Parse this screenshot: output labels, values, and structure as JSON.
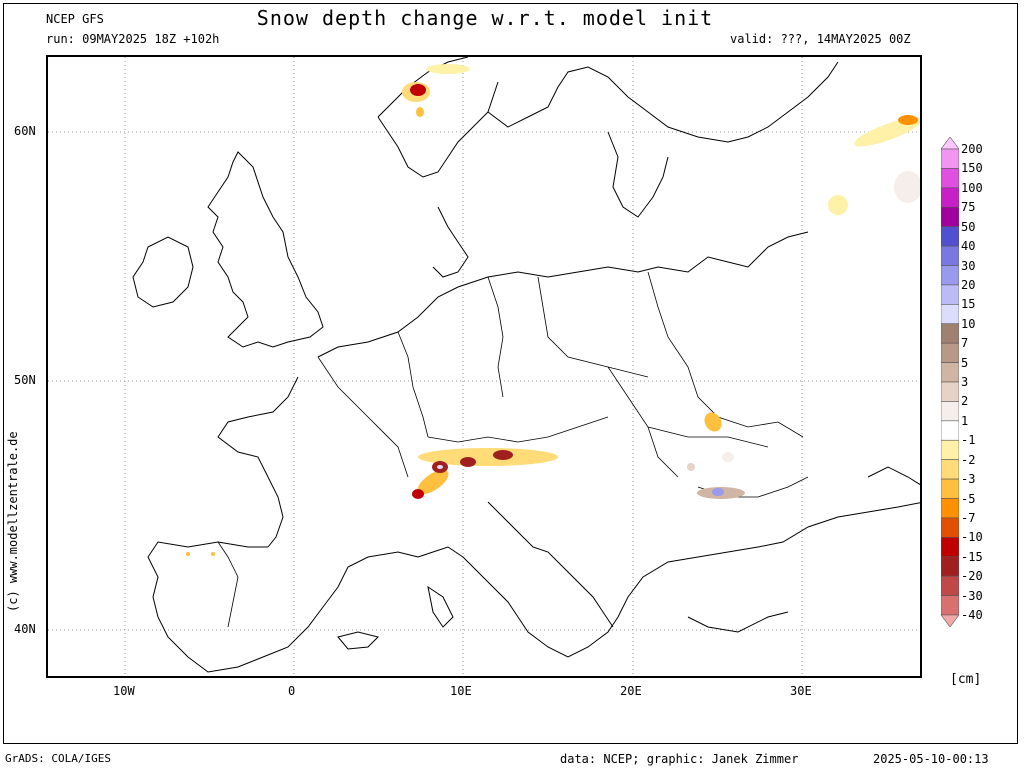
{
  "header": {
    "model": "NCEP GFS",
    "run": "run: 09MAY2025 18Z +102h",
    "title": "Snow depth change w.r.t. model init",
    "valid": "valid: ???, 14MAY2025 00Z"
  },
  "map": {
    "lat_labels": [
      "60N",
      "50N",
      "40N"
    ],
    "lon_labels": [
      "10W",
      "0",
      "10E",
      "20E",
      "30E"
    ],
    "grid": "dotted",
    "region": "Europe"
  },
  "legend": {
    "unit": "[cm]",
    "levels": [
      "200",
      "150",
      "100",
      "75",
      "50",
      "40",
      "30",
      "20",
      "15",
      "10",
      "7",
      "5",
      "3",
      "2",
      "1",
      "-1",
      "-2",
      "-3",
      "-5",
      "-7",
      "-10",
      "-15",
      "-20",
      "-30",
      "-40"
    ],
    "colors": [
      "#ffc6ff",
      "#f096f0",
      "#e050e0",
      "#c820c8",
      "#a000a0",
      "#5050d0",
      "#7878e0",
      "#9a9aec",
      "#bcbcf4",
      "#dcdcfc",
      "#a08070",
      "#b89888",
      "#d0b4a4",
      "#e6d2c6",
      "#f6eeea",
      "#ffffff",
      "#fff2a8",
      "#ffdc78",
      "#ffc040",
      "#ff9000",
      "#e05000",
      "#c00000",
      "#a02020",
      "#c04848",
      "#d87070",
      "#f0a8a8"
    ]
  },
  "footer": {
    "software": "GrADS: COLA/IGES",
    "credit": "data: NCEP; graphic: Janek Zimmer",
    "timestamp": "2025-05-10-00:13",
    "copyright": "(c) www.modellzentrale.de"
  }
}
